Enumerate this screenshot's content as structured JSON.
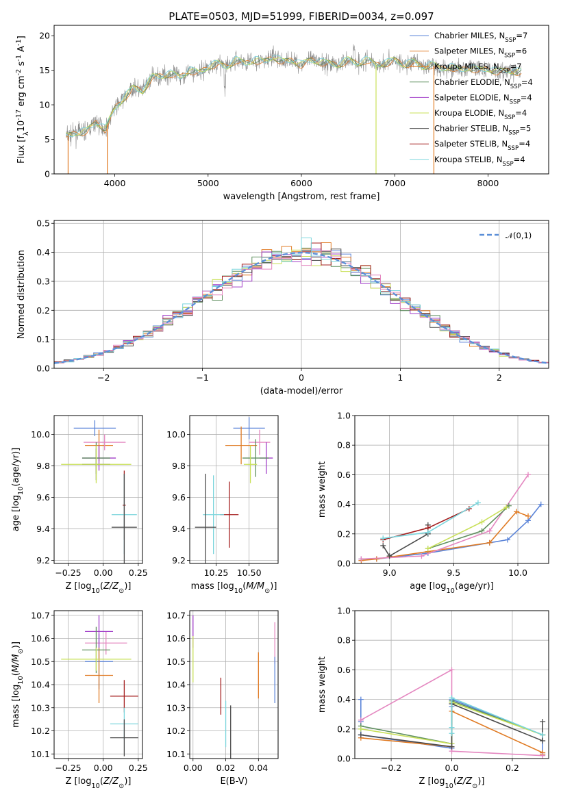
{
  "colors": {
    "blue": "#5b84d8",
    "orange": "#e07b24",
    "green": "#5e8f5e",
    "purple": "#a03cc8",
    "yellow": "#c9e05a",
    "gray": "#4a4a4a",
    "red": "#a41e1e",
    "cyan": "#7ad5dc",
    "pink": "#e487c0",
    "normal": "#5b8fd8"
  },
  "chart_data": [
    {
      "id": "spectrum",
      "type": "line",
      "title": "PLATE=0503, MJD=51999, FIBERID=0034, z=0.097",
      "xlabel": "wavelength [Angstrom, rest frame]",
      "ylabel": "Flux [f$_\\lambda$10$^{-17}$ erg cm$^{-2}$ s$^{-1}$ A$^{-1}$]",
      "xlim": [
        3350,
        8650
      ],
      "ylim": [
        0,
        21.5
      ],
      "xticks": [
        4000,
        5000,
        6000,
        7000,
        8000
      ],
      "yticks": [
        0,
        5,
        10,
        15,
        20
      ],
      "grid": false,
      "legend_position": "top-right",
      "spectrum_envelope": {
        "x": [
          3500,
          3600,
          3700,
          3800,
          3900,
          4000,
          4100,
          4200,
          4300,
          4400,
          4500,
          4600,
          4700,
          4800,
          4900,
          5000,
          5100,
          5200,
          5300,
          5400,
          5500,
          5600,
          5700,
          5800,
          5900,
          6000,
          6100,
          6200,
          6300,
          6400,
          6500,
          6600,
          6700,
          6800,
          6900,
          7000,
          7100,
          7200,
          7300,
          7400,
          7500,
          7600,
          7700,
          7800,
          7900,
          8000,
          8100,
          8200,
          8300
        ],
        "y": [
          5.5,
          6.0,
          6.2,
          7.5,
          6.5,
          9.5,
          11.0,
          12.5,
          12.0,
          14.0,
          14.2,
          14.5,
          14.0,
          15.0,
          14.6,
          15.5,
          16.0,
          15.5,
          16.5,
          16.0,
          16.5,
          16.2,
          17.0,
          16.2,
          16.5,
          15.8,
          16.5,
          16.2,
          16.0,
          15.8,
          16.5,
          16.0,
          16.5,
          15.8,
          16.0,
          16.5,
          15.8,
          16.2,
          15.5,
          15.8,
          15.2,
          15.5,
          15.0,
          15.4,
          15.0,
          15.2,
          14.8,
          15.0,
          14.8
        ]
      },
      "series": [
        {
          "name": "Chabrier MILES, N$_{SSP}$=7",
          "color_key": "blue"
        },
        {
          "name": "Salpeter MILES, N$_{SSP}$=6",
          "color_key": "orange"
        },
        {
          "name": "Kroupa MILES, N$_{SSP}$=7",
          "color_key": "orange"
        },
        {
          "name": "Chabrier ELODIE, N$_{SSP}$=4",
          "color_key": "green"
        },
        {
          "name": "Salpeter ELODIE, N$_{SSP}$=4",
          "color_key": "purple"
        },
        {
          "name": "Kroupa ELODIE, N$_{SSP}$=4",
          "color_key": "yellow"
        },
        {
          "name": "Chabrier STELIB, N$_{SSP}$=5",
          "color_key": "gray"
        },
        {
          "name": "Salpeter STELIB, N$_{SSP}$=4",
          "color_key": "red"
        },
        {
          "name": "Kroupa STELIB, N$_{SSP}$=4",
          "color_key": "cyan"
        }
      ]
    },
    {
      "id": "residuals",
      "type": "histogram",
      "xlabel": "(data-model)/error",
      "ylabel": "Normed distribution",
      "xlim": [
        -2.5,
        2.5
      ],
      "ylim": [
        0,
        0.51
      ],
      "xticks": [
        -2,
        -1,
        0,
        1,
        2
      ],
      "yticks": [
        0.0,
        0.1,
        0.2,
        0.3,
        0.4,
        0.5
      ],
      "grid": true,
      "legend_position": "top-right",
      "legend": "$\\mathcal{N}(0,1)$",
      "bins": {
        "start": -2.5,
        "width": 0.1,
        "count": 50
      },
      "series_colors": [
        "blue",
        "orange",
        "green",
        "purple",
        "yellow",
        "gray",
        "red",
        "cyan",
        "pink"
      ]
    },
    {
      "id": "age_vs_Z",
      "type": "errorbar",
      "xlabel": "Z [log$_{10}$($Z/Z_\\odot$)]",
      "ylabel": "age  [log$_{10}$($age/yr$)]",
      "xlim": [
        -0.35,
        0.28
      ],
      "ylim": [
        9.18,
        10.12
      ],
      "xticks": [
        -0.25,
        0.0,
        0.25
      ],
      "yticks": [
        9.2,
        9.4,
        9.6,
        9.8,
        10.0
      ],
      "grid": true,
      "points": [
        {
          "color_key": "blue",
          "x": -0.06,
          "xerr": 0.15,
          "y": 10.04,
          "yerr": 0.05
        },
        {
          "color_key": "orange",
          "x": -0.03,
          "xerr": 0.1,
          "y": 9.93,
          "yerr": 0.1
        },
        {
          "color_key": "pink",
          "x": 0.01,
          "xerr": 0.15,
          "y": 9.95,
          "yerr": 0.05
        },
        {
          "color_key": "purple",
          "x": -0.03,
          "xerr": 0.12,
          "y": 9.85,
          "yerr": 0.08
        },
        {
          "color_key": "green",
          "x": -0.05,
          "xerr": 0.1,
          "y": 9.85,
          "yerr": 0.1
        },
        {
          "color_key": "gray",
          "x": -0.05,
          "xerr": 0.1,
          "y": 9.81,
          "yerr": 0.1
        },
        {
          "color_key": "yellow",
          "x": -0.05,
          "xerr": 0.25,
          "y": 9.81,
          "yerr": 0.12
        },
        {
          "color_key": "red",
          "x": 0.15,
          "xerr": 0.01,
          "y": 9.55,
          "yerr": 0.22
        },
        {
          "color_key": "cyan",
          "x": 0.15,
          "xerr": 0.09,
          "y": 9.49,
          "yerr": 0.25
        },
        {
          "color_key": "gray",
          "x": 0.15,
          "xerr": 0.09,
          "y": 9.41,
          "yerr": 0.34
        }
      ]
    },
    {
      "id": "age_vs_mass",
      "type": "errorbar",
      "xlabel": "mass [log$_{10}$($M/M_\\odot$)]",
      "ylabel": "",
      "xlim": [
        10.05,
        10.72
      ],
      "ylim": [
        9.18,
        10.12
      ],
      "xticks": [
        10.25,
        10.5
      ],
      "yticks": [
        9.2,
        9.4,
        9.6,
        9.8,
        10.0
      ],
      "grid": true,
      "points": [
        {
          "color_key": "blue",
          "x": 10.5,
          "xerr": 0.12,
          "y": 10.04,
          "yerr": 0.07
        },
        {
          "color_key": "orange",
          "x": 10.44,
          "xerr": 0.12,
          "y": 9.93,
          "yerr": 0.12
        },
        {
          "color_key": "pink",
          "x": 10.58,
          "xerr": 0.08,
          "y": 9.95,
          "yerr": 0.08
        },
        {
          "color_key": "purple",
          "x": 10.63,
          "xerr": 0.05,
          "y": 9.85,
          "yerr": 0.1
        },
        {
          "color_key": "green",
          "x": 10.55,
          "xerr": 0.1,
          "y": 9.85,
          "yerr": 0.12
        },
        {
          "color_key": "yellow",
          "x": 10.51,
          "xerr": 0.05,
          "y": 9.81,
          "yerr": 0.12
        },
        {
          "color_key": "red",
          "x": 10.35,
          "xerr": 0.07,
          "y": 9.49,
          "yerr": 0.21
        },
        {
          "color_key": "cyan",
          "x": 10.23,
          "xerr": 0.08,
          "y": 9.49,
          "yerr": 0.25
        },
        {
          "color_key": "gray",
          "x": 10.17,
          "xerr": 0.08,
          "y": 9.41,
          "yerr": 0.34
        }
      ]
    },
    {
      "id": "mass_weight_vs_age",
      "type": "line",
      "xlabel": "age  [log$_{10}$($age/yr$)]",
      "ylabel": "mass weight",
      "xlim": [
        8.73,
        10.24
      ],
      "ylim": [
        0,
        1.0
      ],
      "xticks": [
        9.0,
        9.5,
        10.0
      ],
      "yticks": [
        0.0,
        0.2,
        0.4,
        0.6,
        0.8,
        1.0
      ],
      "grid": true,
      "series": [
        {
          "color_key": "blue",
          "x": [
            8.78,
            8.9,
            9.3,
            9.78,
            9.92,
            10.08,
            10.18
          ],
          "y": [
            0.03,
            0.03,
            0.07,
            0.14,
            0.16,
            0.29,
            0.4
          ]
        },
        {
          "color_key": "orange",
          "x": [
            8.78,
            8.9,
            9.3,
            9.78,
            9.99,
            10.08
          ],
          "y": [
            0.02,
            0.03,
            0.08,
            0.14,
            0.35,
            0.32
          ]
        },
        {
          "color_key": "pink",
          "x": [
            8.78,
            9.25,
            9.78,
            10.08
          ],
          "y": [
            0.03,
            0.05,
            0.22,
            0.6
          ]
        },
        {
          "color_key": "green",
          "x": [
            9.3,
            9.72,
            9.93
          ],
          "y": [
            0.1,
            0.22,
            0.39
          ]
        },
        {
          "color_key": "yellow",
          "x": [
            9.3,
            9.72,
            9.91
          ],
          "y": [
            0.1,
            0.28,
            0.38
          ]
        },
        {
          "color_key": "gray",
          "x": [
            8.95,
            9.0,
            9.3,
            9.3
          ],
          "y": [
            0.12,
            0.05,
            0.2,
            0.26
          ]
        },
        {
          "color_key": "red",
          "x": [
            8.95,
            9.3,
            9.62
          ],
          "y": [
            0.16,
            0.24,
            0.37
          ]
        },
        {
          "color_key": "cyan",
          "x": [
            8.95,
            9.3,
            9.69
          ],
          "y": [
            0.17,
            0.21,
            0.41
          ]
        }
      ]
    },
    {
      "id": "mass_vs_Z",
      "type": "errorbar",
      "xlabel": "Z [log$_{10}$($Z/Z_\\odot$)]",
      "ylabel": "mass [log$_{10}$($M/M_\\odot$)]",
      "xlim": [
        -0.35,
        0.28
      ],
      "ylim": [
        10.08,
        10.72
      ],
      "xticks": [
        -0.25,
        0.0,
        0.25
      ],
      "yticks": [
        10.1,
        10.2,
        10.3,
        10.4,
        10.5,
        10.6,
        10.7
      ],
      "grid": true,
      "points": [
        {
          "color_key": "blue",
          "x": -0.03,
          "xerr": 0.1,
          "y": 10.5,
          "yerr": 0.12
        },
        {
          "color_key": "orange",
          "x": -0.03,
          "xerr": 0.1,
          "y": 10.44,
          "yerr": 0.12
        },
        {
          "color_key": "pink",
          "x": 0.02,
          "xerr": 0.15,
          "y": 10.58,
          "yerr": 0.05
        },
        {
          "color_key": "purple",
          "x": -0.03,
          "xerr": 0.1,
          "y": 10.63,
          "yerr": 0.07
        },
        {
          "color_key": "green",
          "x": -0.05,
          "xerr": 0.1,
          "y": 10.55,
          "yerr": 0.1
        },
        {
          "color_key": "yellow",
          "x": -0.05,
          "xerr": 0.25,
          "y": 10.51,
          "yerr": 0.05
        },
        {
          "color_key": "red",
          "x": 0.15,
          "xerr": 0.1,
          "y": 10.35,
          "yerr": 0.07
        },
        {
          "color_key": "cyan",
          "x": 0.15,
          "xerr": 0.1,
          "y": 10.23,
          "yerr": 0.07
        },
        {
          "color_key": "gray",
          "x": 0.15,
          "xerr": 0.1,
          "y": 10.17,
          "yerr": 0.08
        }
      ]
    },
    {
      "id": "mass_vs_ebv",
      "type": "errorbar",
      "xlabel": "E(B-V)",
      "ylabel": "",
      "xlim": [
        -0.002,
        0.052
      ],
      "ylim": [
        10.08,
        10.72
      ],
      "xticks": [
        0.0,
        0.02,
        0.04
      ],
      "yticks": [
        10.1,
        10.2,
        10.3,
        10.4,
        10.5,
        10.6,
        10.7
      ],
      "grid": true,
      "points": [
        {
          "color_key": "purple",
          "x": 0.0,
          "xerr": 0,
          "y": 10.63,
          "yerr": 0.07
        },
        {
          "color_key": "yellow",
          "x": 0.0,
          "xerr": 0,
          "y": 10.51,
          "yerr": 0.1
        },
        {
          "color_key": "red",
          "x": 0.017,
          "xerr": 0,
          "y": 10.35,
          "yerr": 0.08
        },
        {
          "color_key": "cyan",
          "x": 0.02,
          "xerr": 0,
          "y": 10.23,
          "yerr": 0.1
        },
        {
          "color_key": "gray",
          "x": 0.023,
          "xerr": 0,
          "y": 10.17,
          "yerr": 0.14
        },
        {
          "color_key": "orange",
          "x": 0.04,
          "xerr": 0,
          "y": 10.44,
          "yerr": 0.1
        },
        {
          "color_key": "pink",
          "x": 0.05,
          "xerr": 0,
          "y": 10.58,
          "yerr": 0.09
        },
        {
          "color_key": "blue",
          "x": 0.05,
          "xerr": 0,
          "y": 10.42,
          "yerr": 0.1
        }
      ]
    },
    {
      "id": "mass_weight_vs_Z",
      "type": "line",
      "xlabel": "Z [log$_{10}$($Z/Z_\\odot$)]",
      "ylabel": "mass weight",
      "xlim": [
        -0.32,
        0.32
      ],
      "ylim": [
        0,
        1.0
      ],
      "xticks": [
        -0.2,
        0.0,
        0.2
      ],
      "yticks": [
        0.0,
        0.2,
        0.4,
        0.6,
        0.8,
        1.0
      ],
      "grid": true,
      "series": [
        {
          "color_key": "blue",
          "x": [
            -0.3,
            -0.3,
            -0.3,
            0.0,
            0.0,
            0.0,
            0.3,
            0.3
          ],
          "y": [
            0.4,
            0.25,
            0.16,
            0.07,
            0.35,
            0.4,
            0.16,
            0.03
          ]
        },
        {
          "color_key": "orange",
          "x": [
            -0.3,
            0.0,
            0.0,
            0.3,
            0.3
          ],
          "y": [
            0.14,
            0.08,
            0.32,
            0.04,
            0.03
          ]
        },
        {
          "color_key": "pink",
          "x": [
            -0.3,
            0.0,
            0.0,
            0.3
          ],
          "y": [
            0.26,
            0.6,
            0.05,
            0.02
          ]
        },
        {
          "color_key": "green",
          "x": [
            -0.3,
            0.0,
            0.0,
            0.3
          ],
          "y": [
            0.22,
            0.1,
            0.39,
            0.16
          ]
        },
        {
          "color_key": "yellow",
          "x": [
            -0.3,
            0.0,
            0.0,
            0.3
          ],
          "y": [
            0.2,
            0.1,
            0.38,
            0.16
          ]
        },
        {
          "color_key": "gray",
          "x": [
            -0.3,
            0.0,
            0.0,
            0.3,
            0.3
          ],
          "y": [
            0.16,
            0.08,
            0.37,
            0.12,
            0.25
          ]
        },
        {
          "color_key": "cyan",
          "x": [
            0.0,
            0.0,
            0.0,
            0.3
          ],
          "y": [
            0.17,
            0.21,
            0.41,
            0.16
          ]
        }
      ]
    }
  ]
}
